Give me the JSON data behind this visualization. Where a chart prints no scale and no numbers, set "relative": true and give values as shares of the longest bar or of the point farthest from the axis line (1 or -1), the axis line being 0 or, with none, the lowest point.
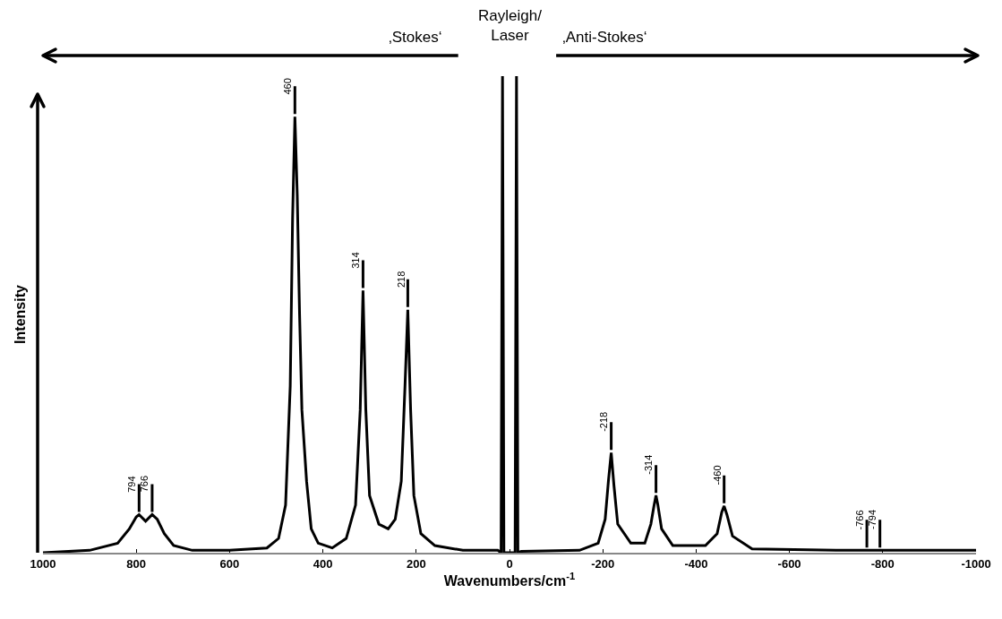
{
  "chart_data": {
    "type": "line",
    "relative": true,
    "xlabel": "Wavenumbers/cm$^{-1}$",
    "ylabel": "Intensity",
    "xlim": [
      1000,
      -1000
    ],
    "xticks": [
      1000,
      800,
      600,
      400,
      200,
      0,
      -200,
      -400,
      -600,
      -800,
      -1000
    ],
    "grid": false,
    "marker": "none",
    "line_style": "solid",
    "series": [
      {
        "color": "#000000",
        "x": [
          1000,
          900,
          840,
          815,
          800,
          794,
          780,
          766,
          755,
          740,
          720,
          680,
          600,
          520,
          495,
          480,
          470,
          465,
          460,
          455,
          450,
          445,
          435,
          425,
          410,
          380,
          350,
          330,
          320,
          314,
          308,
          300,
          280,
          260,
          245,
          232,
          224,
          218,
          212,
          205,
          190,
          160,
          100,
          25,
          18,
          15,
          12,
          -12,
          -15,
          -18,
          -25,
          -150,
          -190,
          -205,
          -212,
          -218,
          -224,
          -232,
          -260,
          -290,
          -303,
          -310,
          -314,
          -318,
          -326,
          -350,
          -420,
          -445,
          -455,
          -460,
          -466,
          -478,
          -520,
          -700,
          -1000
        ],
        "values": [
          0,
          0.005,
          0.02,
          0.05,
          0.075,
          0.08,
          0.066,
          0.08,
          0.07,
          0.04,
          0.015,
          0.005,
          0.005,
          0.01,
          0.03,
          0.1,
          0.35,
          0.7,
          0.915,
          0.75,
          0.5,
          0.3,
          0.15,
          0.05,
          0.02,
          0.01,
          0.03,
          0.1,
          0.3,
          0.55,
          0.3,
          0.12,
          0.06,
          0.05,
          0.07,
          0.15,
          0.35,
          0.51,
          0.3,
          0.12,
          0.04,
          0.015,
          0.005,
          0.005,
          0,
          1,
          0,
          0,
          1,
          0,
          0.003,
          0.005,
          0.02,
          0.07,
          0.15,
          0.21,
          0.14,
          0.06,
          0.02,
          0.02,
          0.06,
          0.1,
          0.12,
          0.1,
          0.05,
          0.015,
          0.015,
          0.04,
          0.085,
          0.098,
          0.08,
          0.035,
          0.008,
          0.005,
          0.005
        ]
      }
    ],
    "annotations": [
      "‚Stokes‘",
      "Rayleigh/\nLaser",
      "‚Anti-Stokes‘",
      {
        "text": "794",
        "x": 794,
        "y": 0.08
      },
      {
        "text": "766",
        "x": 766,
        "y": 0.08
      },
      {
        "text": "460",
        "x": 460,
        "y": 0.915
      },
      {
        "text": "314",
        "x": 314,
        "y": 0.55
      },
      {
        "text": "218",
        "x": 218,
        "y": 0.51
      },
      {
        "text": "-218",
        "x": -218,
        "y": 0.21
      },
      {
        "text": "-314",
        "x": -314,
        "y": 0.12
      },
      {
        "text": "-460",
        "x": -460,
        "y": 0.098
      },
      {
        "text": "-766",
        "x": -766,
        "y": 0.005
      },
      {
        "text": "-794",
        "x": -794,
        "y": 0.005
      }
    ]
  }
}
